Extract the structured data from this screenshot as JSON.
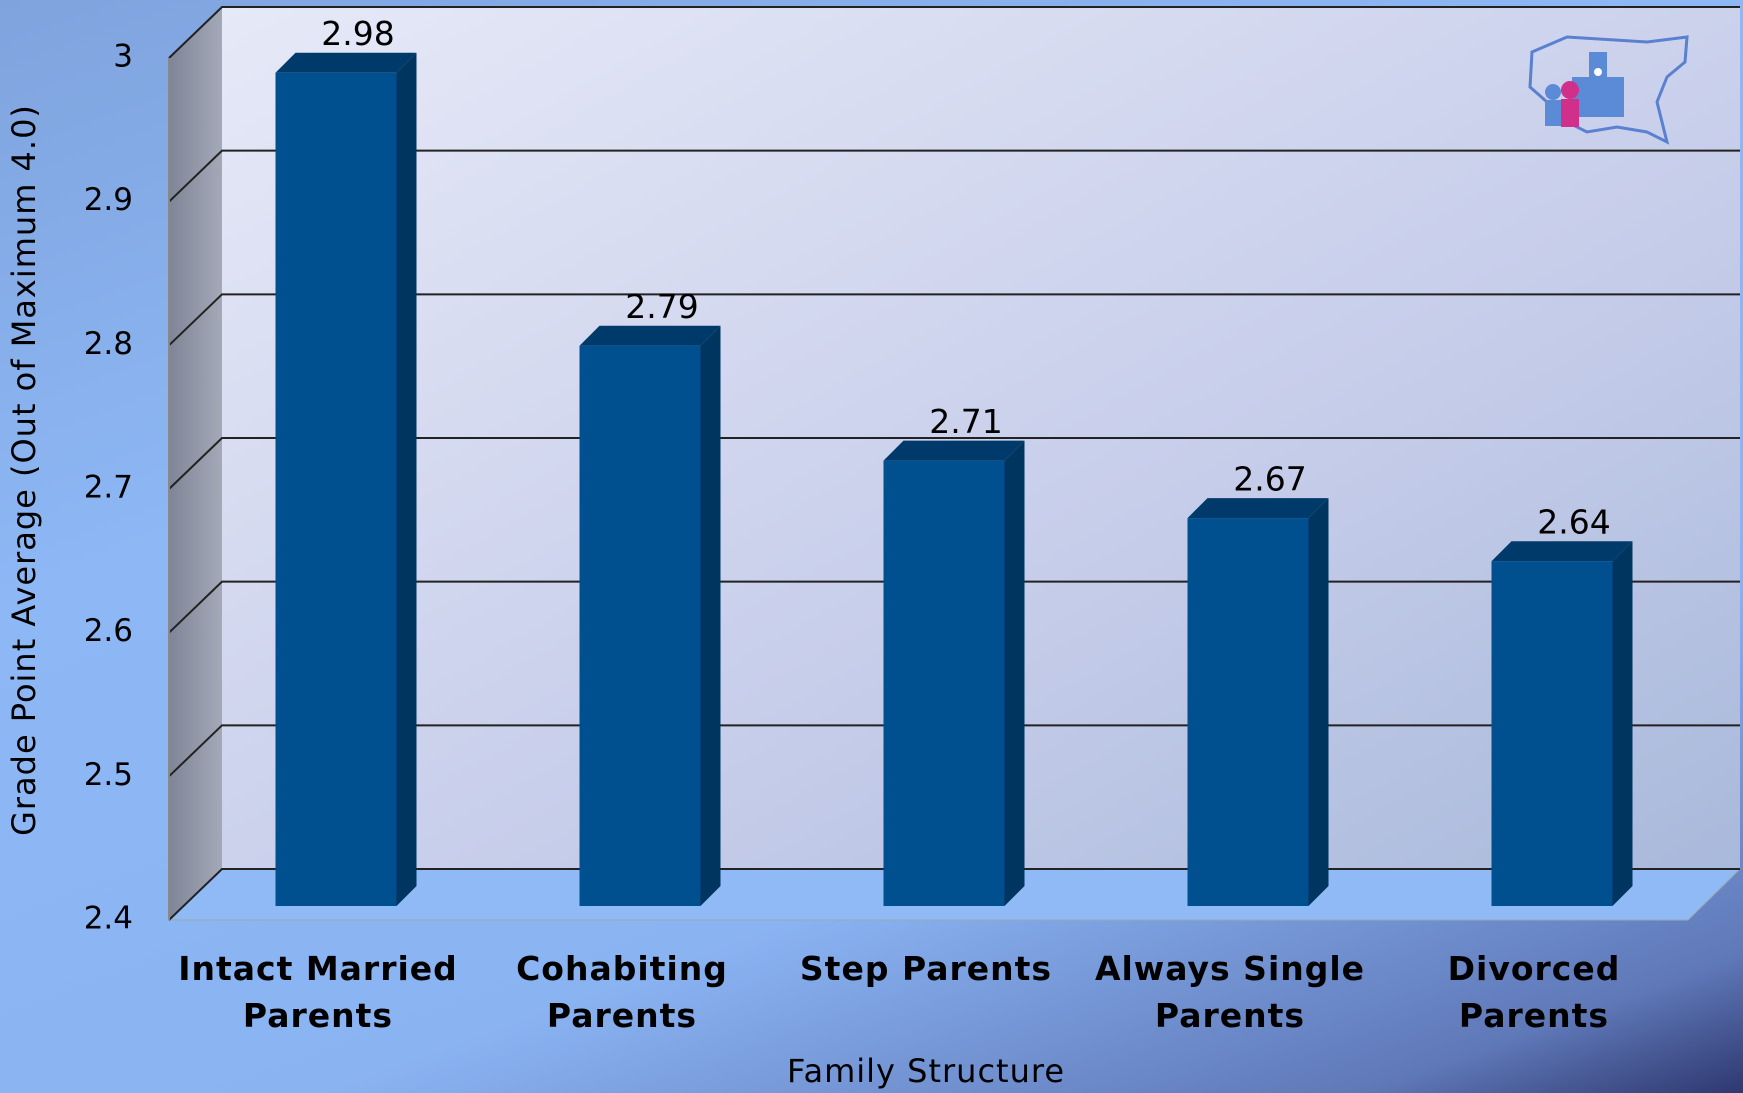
{
  "chart_data": {
    "type": "bar",
    "categories": [
      "Intact Married Parents",
      "Cohabiting Parents",
      "Step Parents",
      "Always Single Parents",
      "Divorced Parents"
    ],
    "values": [
      2.98,
      2.79,
      2.71,
      2.67,
      2.64
    ],
    "color": "#00508f",
    "x_label": "Family Structure",
    "y_label": "Grade Point Average (Out of Maximum 4.0)",
    "ylim": [
      2.4,
      3
    ],
    "yticks": [
      2.4,
      2.5,
      2.6,
      2.7,
      2.8,
      2.9,
      3
    ],
    "grid": true
  }
}
